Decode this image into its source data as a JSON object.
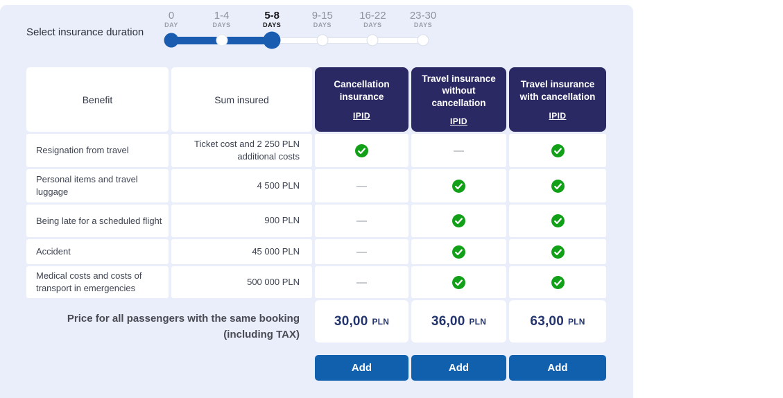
{
  "duration": {
    "label": "Select insurance duration",
    "selected_index": 2,
    "stops": [
      {
        "value": "0",
        "unit": "DAY",
        "state": "start"
      },
      {
        "value": "1-4",
        "unit": "DAYS",
        "state": "intermediate"
      },
      {
        "value": "5-8",
        "unit": "DAYS",
        "state": "selected"
      },
      {
        "value": "9-15",
        "unit": "DAYS",
        "state": "default"
      },
      {
        "value": "16-22",
        "unit": "DAYS",
        "state": "default"
      },
      {
        "value": "23-30",
        "unit": "DAYS",
        "state": "default"
      }
    ]
  },
  "table": {
    "benefit_header": "Benefit",
    "sum_header": "Sum insured",
    "products": [
      {
        "name": "Cancellation insurance",
        "ipid_label": "IPID",
        "price": "30,00",
        "currency": "PLN",
        "add_label": "Add"
      },
      {
        "name": "Travel insurance without cancellation",
        "ipid_label": "IPID",
        "price": "36,00",
        "currency": "PLN",
        "add_label": "Add"
      },
      {
        "name": "Travel insurance with cancellation",
        "ipid_label": "IPID",
        "price": "63,00",
        "currency": "PLN",
        "add_label": "Add"
      }
    ],
    "rows": [
      {
        "benefit": "Resignation from travel",
        "sum": "Ticket cost and 2 250 PLN additional costs",
        "included": [
          true,
          false,
          true
        ]
      },
      {
        "benefit": "Personal items and travel luggage",
        "sum": "4 500 PLN",
        "included": [
          false,
          true,
          true
        ]
      },
      {
        "benefit": "Being late for a scheduled flight",
        "sum": "900 PLN",
        "included": [
          false,
          true,
          true
        ]
      },
      {
        "benefit": "Accident",
        "sum": "45 000 PLN",
        "included": [
          false,
          true,
          true
        ]
      },
      {
        "benefit": "Medical costs and costs of transport in emergencies",
        "sum": "500 000 PLN",
        "included": [
          false,
          true,
          true
        ]
      }
    ],
    "price_label_line1": "Price for all passengers with the same booking",
    "price_label_line2": "(including TAX)"
  },
  "icons": {
    "included": "check-icon",
    "not_included": "dash-icon"
  },
  "colors": {
    "panel_bg": "#e9eefa",
    "header_navy": "#2b2963",
    "action_blue": "#1160ae",
    "slider_blue": "#1a5cb0",
    "check_green": "#12a019",
    "price_navy": "#24356e"
  }
}
